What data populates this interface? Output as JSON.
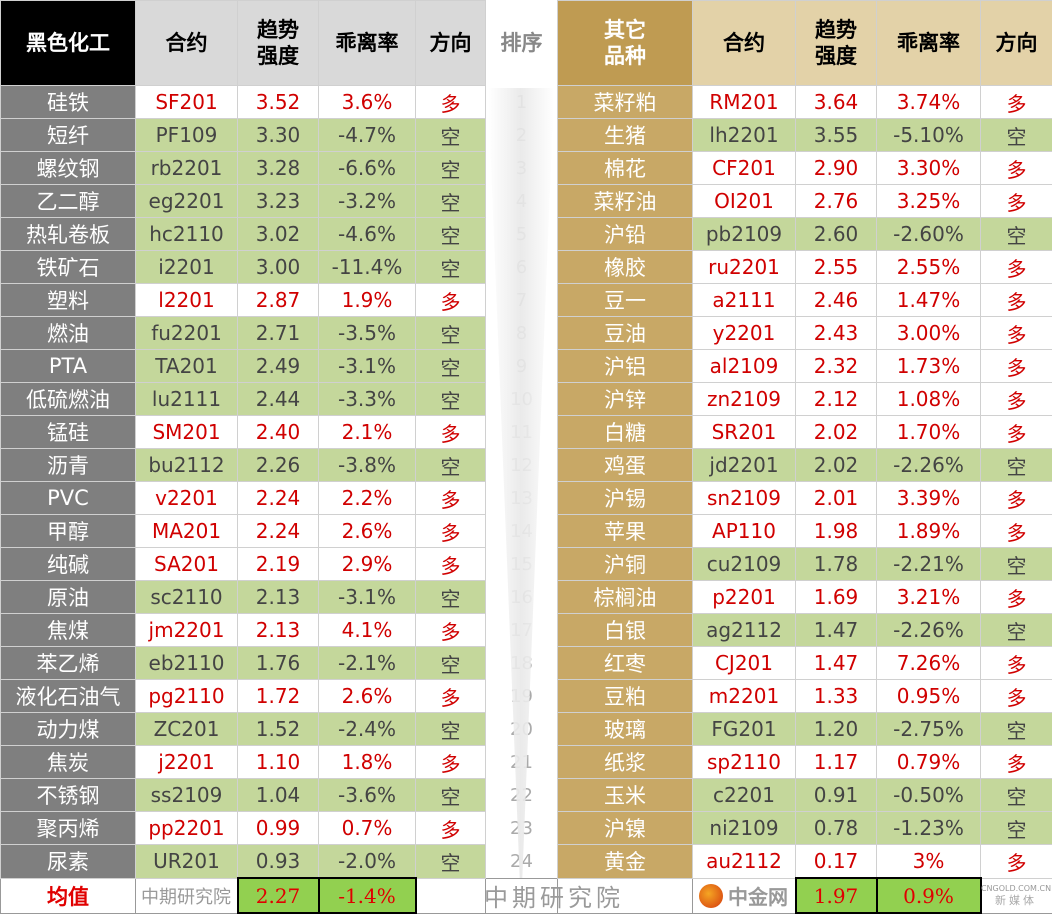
{
  "header": {
    "left_title": "黑色化工",
    "contract": "合约",
    "strength": "趋势强度",
    "deviation": "乖离率",
    "direction": "方向",
    "rank": "排序",
    "right_title": "其它品种"
  },
  "left": [
    [
      "硅铁",
      "SF201",
      "3.52",
      "3.6%",
      "多"
    ],
    [
      "短纤",
      "PF109",
      "3.30",
      "-4.7%",
      "空"
    ],
    [
      "螺纹钢",
      "rb2201",
      "3.28",
      "-6.6%",
      "空"
    ],
    [
      "乙二醇",
      "eg2201",
      "3.23",
      "-3.2%",
      "空"
    ],
    [
      "热轧卷板",
      "hc2110",
      "3.02",
      "-4.6%",
      "空"
    ],
    [
      "铁矿石",
      "i2201",
      "3.00",
      "-11.4%",
      "空"
    ],
    [
      "塑料",
      "l2201",
      "2.87",
      "1.9%",
      "多"
    ],
    [
      "燃油",
      "fu2201",
      "2.71",
      "-3.5%",
      "空"
    ],
    [
      "PTA",
      "TA201",
      "2.49",
      "-3.1%",
      "空"
    ],
    [
      "低硫燃油",
      "lu2111",
      "2.44",
      "-3.3%",
      "空"
    ],
    [
      "锰硅",
      "SM201",
      "2.40",
      "2.1%",
      "多"
    ],
    [
      "沥青",
      "bu2112",
      "2.26",
      "-3.8%",
      "空"
    ],
    [
      "PVC",
      "v2201",
      "2.24",
      "2.2%",
      "多"
    ],
    [
      "甲醇",
      "MA201",
      "2.24",
      "2.6%",
      "多"
    ],
    [
      "纯碱",
      "SA201",
      "2.19",
      "2.9%",
      "多"
    ],
    [
      "原油",
      "sc2110",
      "2.13",
      "-3.1%",
      "空"
    ],
    [
      "焦煤",
      "jm2201",
      "2.13",
      "4.1%",
      "多"
    ],
    [
      "苯乙烯",
      "eb2110",
      "1.76",
      "-2.1%",
      "空"
    ],
    [
      "液化石油气",
      "pg2110",
      "1.72",
      "2.6%",
      "多"
    ],
    [
      "动力煤",
      "ZC201",
      "1.52",
      "-2.4%",
      "空"
    ],
    [
      "焦炭",
      "j2201",
      "1.10",
      "1.8%",
      "多"
    ],
    [
      "不锈钢",
      "ss2109",
      "1.04",
      "-3.6%",
      "空"
    ],
    [
      "聚丙烯",
      "pp2201",
      "0.99",
      "0.7%",
      "多"
    ],
    [
      "尿素",
      "UR201",
      "0.93",
      "-2.0%",
      "空"
    ]
  ],
  "ranks": [
    "1",
    "2",
    "3",
    "4",
    "5",
    "6",
    "7",
    "8",
    "9",
    "10",
    "11",
    "12",
    "13",
    "14",
    "15",
    "16",
    "17",
    "18",
    "19",
    "20",
    "21",
    "22",
    "23",
    "24"
  ],
  "right": [
    [
      "菜籽粕",
      "RM201",
      "3.64",
      "3.74%",
      "多"
    ],
    [
      "生猪",
      "lh2201",
      "3.55",
      "-5.10%",
      "空"
    ],
    [
      "棉花",
      "CF201",
      "2.90",
      "3.30%",
      "多"
    ],
    [
      "菜籽油",
      "OI201",
      "2.76",
      "3.25%",
      "多"
    ],
    [
      "沪铅",
      "pb2109",
      "2.60",
      "-2.60%",
      "空"
    ],
    [
      "橡胶",
      "ru2201",
      "2.55",
      "2.55%",
      "多"
    ],
    [
      "豆一",
      "a2111",
      "2.46",
      "1.47%",
      "多"
    ],
    [
      "豆油",
      "y2201",
      "2.43",
      "3.00%",
      "多"
    ],
    [
      "沪铝",
      "al2109",
      "2.32",
      "1.73%",
      "多"
    ],
    [
      "沪锌",
      "zn2109",
      "2.12",
      "1.08%",
      "多"
    ],
    [
      "白糖",
      "SR201",
      "2.02",
      "1.70%",
      "多"
    ],
    [
      "鸡蛋",
      "jd2201",
      "2.02",
      "-2.26%",
      "空"
    ],
    [
      "沪锡",
      "sn2109",
      "2.01",
      "3.39%",
      "多"
    ],
    [
      "苹果",
      "AP110",
      "1.98",
      "1.89%",
      "多"
    ],
    [
      "沪铜",
      "cu2109",
      "1.78",
      "-2.21%",
      "空"
    ],
    [
      "棕榈油",
      "p2201",
      "1.69",
      "3.21%",
      "多"
    ],
    [
      "白银",
      "ag2112",
      "1.47",
      "-2.26%",
      "空"
    ],
    [
      "红枣",
      "CJ201",
      "1.47",
      "7.26%",
      "多"
    ],
    [
      "豆粕",
      "m2201",
      "1.33",
      "0.95%",
      "多"
    ],
    [
      "玻璃",
      "FG201",
      "1.20",
      "-2.75%",
      "空"
    ],
    [
      "纸浆",
      "sp2110",
      "1.17",
      "0.79%",
      "多"
    ],
    [
      "玉米",
      "c2201",
      "0.91",
      "-0.50%",
      "空"
    ],
    [
      "沪镍",
      "ni2109",
      "0.78",
      "-1.23%",
      "空"
    ],
    [
      "黄金",
      "au2112",
      "0.17",
      "3%",
      "多"
    ]
  ],
  "average": {
    "label": "均值",
    "left_strength": "2.27",
    "left_deviation": "-1.4%",
    "right_strength": "1.97",
    "right_deviation": "0.9%"
  },
  "watermark": "中期研究院",
  "logo": {
    "name": "中金网",
    "domain": "CNGOLD.COM.CN",
    "tagline": "新媒体"
  }
}
